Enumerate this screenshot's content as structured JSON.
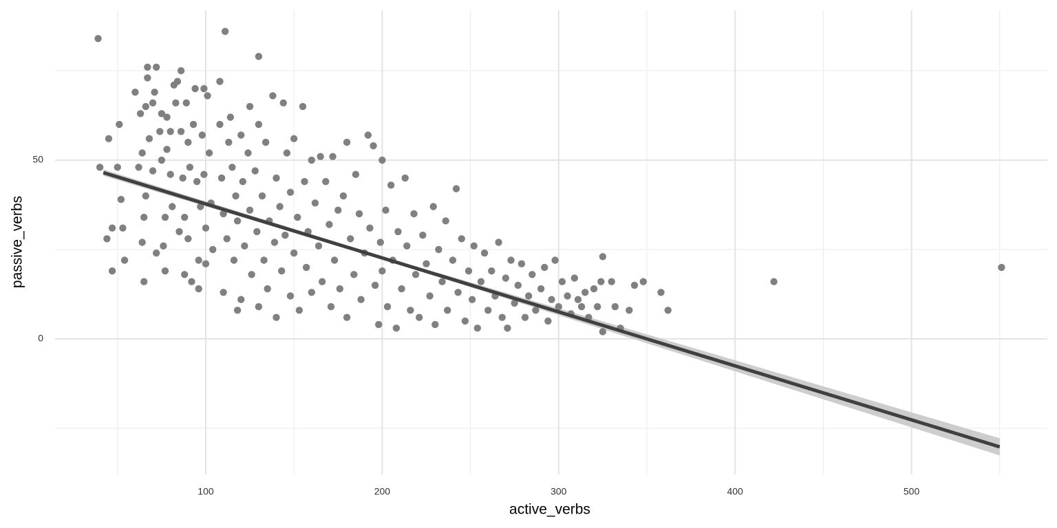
{
  "chart_data": {
    "type": "scatter",
    "x_label": "active_verbs",
    "y_label": "passive_verbs",
    "xlim": [
      14.6,
      577
    ],
    "ylim": [
      -37.9,
      91.9
    ],
    "xticks": [
      100,
      200,
      300,
      400,
      500
    ],
    "yticks": [
      0,
      50
    ],
    "xminor": [
      50,
      150,
      250,
      350,
      450,
      550
    ],
    "yminor": [
      -25,
      25,
      75
    ],
    "grid": true,
    "series": [
      {
        "color": "#808080",
        "x": [
          40,
          45,
          44,
          47,
          47,
          50,
          51,
          52,
          53,
          54,
          60,
          62,
          63,
          64,
          64,
          65,
          65,
          66,
          66,
          67,
          67,
          68,
          70,
          70,
          71,
          72,
          72,
          74,
          75,
          75,
          76,
          77,
          77,
          78,
          78,
          80,
          80,
          81,
          82,
          83,
          84,
          85,
          86,
          86,
          87,
          88,
          88,
          89,
          90,
          90,
          91,
          92,
          93,
          94,
          95,
          96,
          96,
          97,
          98,
          99,
          99,
          100,
          100,
          101,
          102,
          103,
          104,
          108,
          108,
          109,
          110,
          110,
          112,
          113,
          114,
          115,
          116,
          117,
          118,
          118,
          120,
          120,
          121,
          122,
          124,
          125,
          125,
          126,
          128,
          129,
          130,
          130,
          132,
          133,
          134,
          135,
          136,
          138,
          139,
          140,
          140,
          142,
          143,
          144,
          145,
          146,
          148,
          148,
          150,
          150,
          152,
          153,
          155,
          156,
          157,
          158,
          160,
          160,
          162,
          164,
          165,
          166,
          168,
          170,
          171,
          172,
          173,
          175,
          176,
          178,
          180,
          180,
          182,
          184,
          185,
          187,
          188,
          190,
          192,
          193,
          195,
          196,
          198,
          199,
          200,
          200,
          202,
          203,
          205,
          206,
          208,
          209,
          211,
          213,
          214,
          216,
          218,
          219,
          221,
          223,
          225,
          227,
          229,
          230,
          232,
          234,
          236,
          237,
          240,
          242,
          243,
          245,
          247,
          249,
          251,
          252,
          254,
          256,
          258,
          260,
          262,
          264,
          266,
          268,
          270,
          271,
          273,
          275,
          277,
          279,
          281,
          283,
          285,
          287,
          290,
          292,
          294,
          296,
          298,
          300,
          302,
          305,
          307,
          309,
          311,
          313,
          315,
          317,
          320,
          322,
          324,
          325,
          325,
          330,
          332,
          335,
          340,
          343,
          348,
          358,
          362,
          422,
          551,
          39,
          111,
          130
        ],
        "values": [
          48,
          56,
          28,
          31,
          19,
          48,
          60,
          39,
          31,
          22,
          69,
          48,
          63,
          52,
          27,
          34,
          16,
          40,
          65,
          76,
          73,
          56,
          66,
          47,
          69,
          76,
          24,
          58,
          50,
          63,
          26,
          34,
          19,
          62,
          53,
          58,
          46,
          37,
          71,
          66,
          72,
          30,
          75,
          58,
          45,
          34,
          18,
          66,
          55,
          28,
          48,
          16,
          60,
          70,
          44,
          22,
          14,
          37,
          57,
          70,
          46,
          31,
          21,
          68,
          52,
          38,
          25,
          72,
          60,
          45,
          13,
          35,
          28,
          55,
          62,
          48,
          22,
          40,
          8,
          33,
          57,
          11,
          44,
          26,
          52,
          65,
          36,
          18,
          47,
          30,
          60,
          9,
          40,
          22,
          55,
          14,
          33,
          68,
          27,
          6,
          45,
          37,
          19,
          66,
          29,
          52,
          12,
          41,
          56,
          24,
          34,
          8,
          65,
          44,
          20,
          30,
          50,
          13,
          38,
          26,
          51,
          16,
          44,
          32,
          9,
          51,
          22,
          36,
          14,
          40,
          55,
          6,
          28,
          18,
          46,
          35,
          11,
          24,
          57,
          31,
          54,
          15,
          4,
          27,
          50,
          19,
          36,
          9,
          43,
          22,
          3,
          30,
          14,
          45,
          26,
          8,
          35,
          18,
          6,
          29,
          21,
          12,
          37,
          4,
          25,
          16,
          33,
          8,
          22,
          42,
          13,
          28,
          5,
          19,
          11,
          26,
          3,
          16,
          24,
          8,
          19,
          12,
          27,
          6,
          17,
          3,
          22,
          10,
          15,
          21,
          6,
          12,
          18,
          8,
          14,
          20,
          5,
          11,
          22,
          9,
          16,
          12,
          7,
          17,
          11,
          9,
          13,
          6,
          14,
          9,
          16,
          23,
          2,
          16,
          9,
          3,
          8,
          15,
          16,
          13,
          8,
          16,
          20,
          84,
          86,
          79
        ]
      }
    ],
    "fit": {
      "color": "#404040",
      "x": [
        42,
        550
      ],
      "values": [
        46.5,
        -30.2
      ],
      "band_color": "#c8c8c8",
      "band_x": [
        42,
        200,
        550
      ],
      "band_lower": [
        45.6,
        22.3,
        -32.6
      ],
      "band_upper": [
        47.4,
        23.1,
        -27.8
      ]
    }
  }
}
